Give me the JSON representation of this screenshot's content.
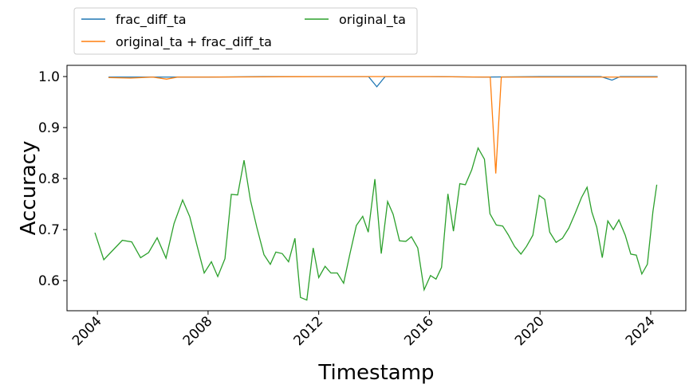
{
  "chart_data": {
    "type": "line",
    "xlabel": "Timestamp",
    "ylabel": "Accuracy",
    "xlim": [
      2002.9,
      2025.27
    ],
    "xticks": [
      2004,
      2008,
      2012,
      2016,
      2020,
      2024
    ],
    "ylim": [
      0.541,
      1.022
    ],
    "yticks": [
      0.6,
      0.7,
      0.8,
      0.9,
      {
        "value": 1,
        "label": "1.0"
      }
    ],
    "legend": "upper left",
    "series": [
      {
        "name": "frac_diff_ta",
        "color": "#1f77b4",
        "x": [
          2004.4,
          2006,
          2008,
          2010,
          2012,
          2013.8,
          2014.1,
          2014.4,
          2016,
          2018,
          2020,
          2022.2,
          2022.6,
          2022.9,
          2024.25
        ],
        "values": [
          0.999,
          0.999,
          0.999,
          1.0,
          1.0,
          1.0,
          0.98,
          1.0,
          1.0,
          0.999,
          1.0,
          1.0,
          0.993,
          1.0,
          1.0
        ]
      },
      {
        "name": "original_ta + frac_diff_ta",
        "color": "#ff7f0e",
        "x": [
          2004.4,
          2005.2,
          2006,
          2006.5,
          2006.9,
          2008,
          2012,
          2016,
          2018,
          2018.2,
          2018.4,
          2018.6,
          2020,
          2024.25
        ],
        "values": [
          0.998,
          0.997,
          0.999,
          0.995,
          0.999,
          0.999,
          1.0,
          1.0,
          0.999,
          0.999,
          0.81,
          0.999,
          0.999,
          0.999
        ]
      },
      {
        "name": "original_ta",
        "color": "#2ca02c",
        "x": [
          2003.91,
          2004.23,
          2004.9,
          2005.24,
          2005.56,
          2005.85,
          2006.16,
          2006.48,
          2006.77,
          2007.08,
          2007.34,
          2007.6,
          2007.86,
          2008.12,
          2008.35,
          2008.61,
          2008.84,
          2009.07,
          2009.3,
          2009.53,
          2009.76,
          2010.02,
          2010.25,
          2010.45,
          2010.68,
          2010.91,
          2011.14,
          2011.34,
          2011.57,
          2011.8,
          2012.0,
          2012.23,
          2012.44,
          2012.67,
          2012.9,
          2013.13,
          2013.36,
          2013.59,
          2013.79,
          2014.03,
          2014.26,
          2014.49,
          2014.69,
          2014.92,
          2015.15,
          2015.35,
          2015.58,
          2015.81,
          2016.04,
          2016.24,
          2016.44,
          2016.67,
          2016.87,
          2017.1,
          2017.3,
          2017.53,
          2017.76,
          2017.99,
          2018.19,
          2018.42,
          2018.65,
          2018.85,
          2019.08,
          2019.31,
          2019.51,
          2019.74,
          2019.97,
          2020.17,
          2020.35,
          2020.58,
          2020.81,
          2021.04,
          2021.27,
          2021.5,
          2021.7,
          2021.87,
          2022.05,
          2022.25,
          2022.45,
          2022.65,
          2022.85,
          2023.08,
          2023.28,
          2023.48,
          2023.68,
          2023.88,
          2024.08,
          2024.22
        ],
        "values": [
          0.694,
          0.641,
          0.679,
          0.676,
          0.645,
          0.655,
          0.684,
          0.644,
          0.712,
          0.758,
          0.725,
          0.669,
          0.615,
          0.637,
          0.608,
          0.643,
          0.769,
          0.768,
          0.836,
          0.758,
          0.705,
          0.651,
          0.632,
          0.656,
          0.653,
          0.637,
          0.683,
          0.567,
          0.562,
          0.664,
          0.606,
          0.628,
          0.615,
          0.615,
          0.595,
          0.653,
          0.708,
          0.726,
          0.695,
          0.799,
          0.653,
          0.755,
          0.73,
          0.678,
          0.677,
          0.686,
          0.664,
          0.582,
          0.61,
          0.603,
          0.626,
          0.77,
          0.697,
          0.79,
          0.788,
          0.817,
          0.86,
          0.838,
          0.731,
          0.709,
          0.707,
          0.69,
          0.667,
          0.652,
          0.667,
          0.689,
          0.767,
          0.759,
          0.695,
          0.675,
          0.683,
          0.703,
          0.732,
          0.763,
          0.783,
          0.735,
          0.705,
          0.645,
          0.717,
          0.7,
          0.719,
          0.689,
          0.652,
          0.65,
          0.613,
          0.632,
          0.735,
          0.788
        ]
      }
    ]
  }
}
